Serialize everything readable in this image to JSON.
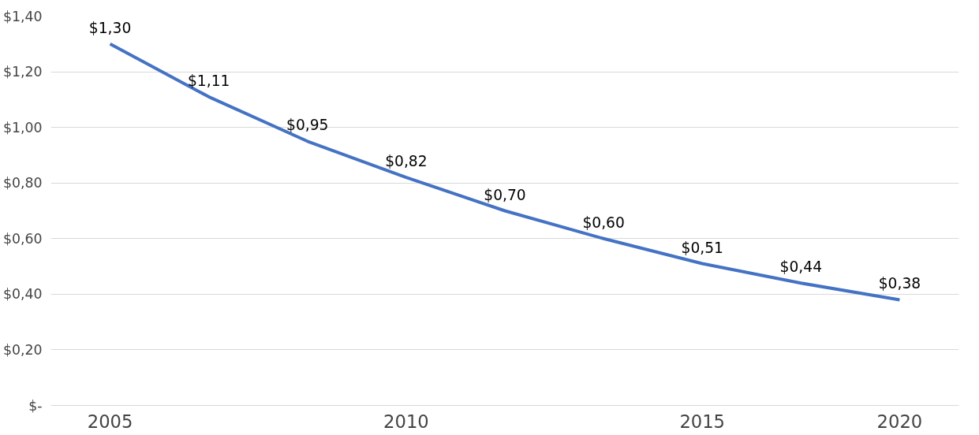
{
  "chart_data": {
    "type": "line",
    "categories": [
      "2005",
      null,
      null,
      "2010",
      null,
      null,
      "2015",
      null,
      "2020"
    ],
    "series": [
      {
        "color": "#4472c4",
        "values": [
          1.3,
          1.11,
          0.95,
          0.82,
          0.7,
          0.6,
          0.51,
          0.44,
          0.38
        ],
        "value_labels": [
          "$1,30",
          "$1,11",
          "$0,95",
          "$0,82",
          "$0,70",
          "$0,60",
          "$0,51",
          "$0,44",
          "$0,38"
        ]
      }
    ],
    "ylim": [
      0,
      1.4
    ],
    "yticks": [
      {
        "value": 0,
        "label": "$-"
      },
      {
        "value": 0.2,
        "label": "$0,20"
      },
      {
        "value": 0.4,
        "label": "$0,40"
      },
      {
        "value": 0.6,
        "label": "$0,60"
      },
      {
        "value": 0.8,
        "label": "$0,80"
      },
      {
        "value": 1.0,
        "label": "$1,00"
      },
      {
        "value": 1.2,
        "label": "$1,20"
      },
      {
        "value": 1.4,
        "label": "$1,40"
      }
    ],
    "grid": "y",
    "line_style": "solid"
  }
}
